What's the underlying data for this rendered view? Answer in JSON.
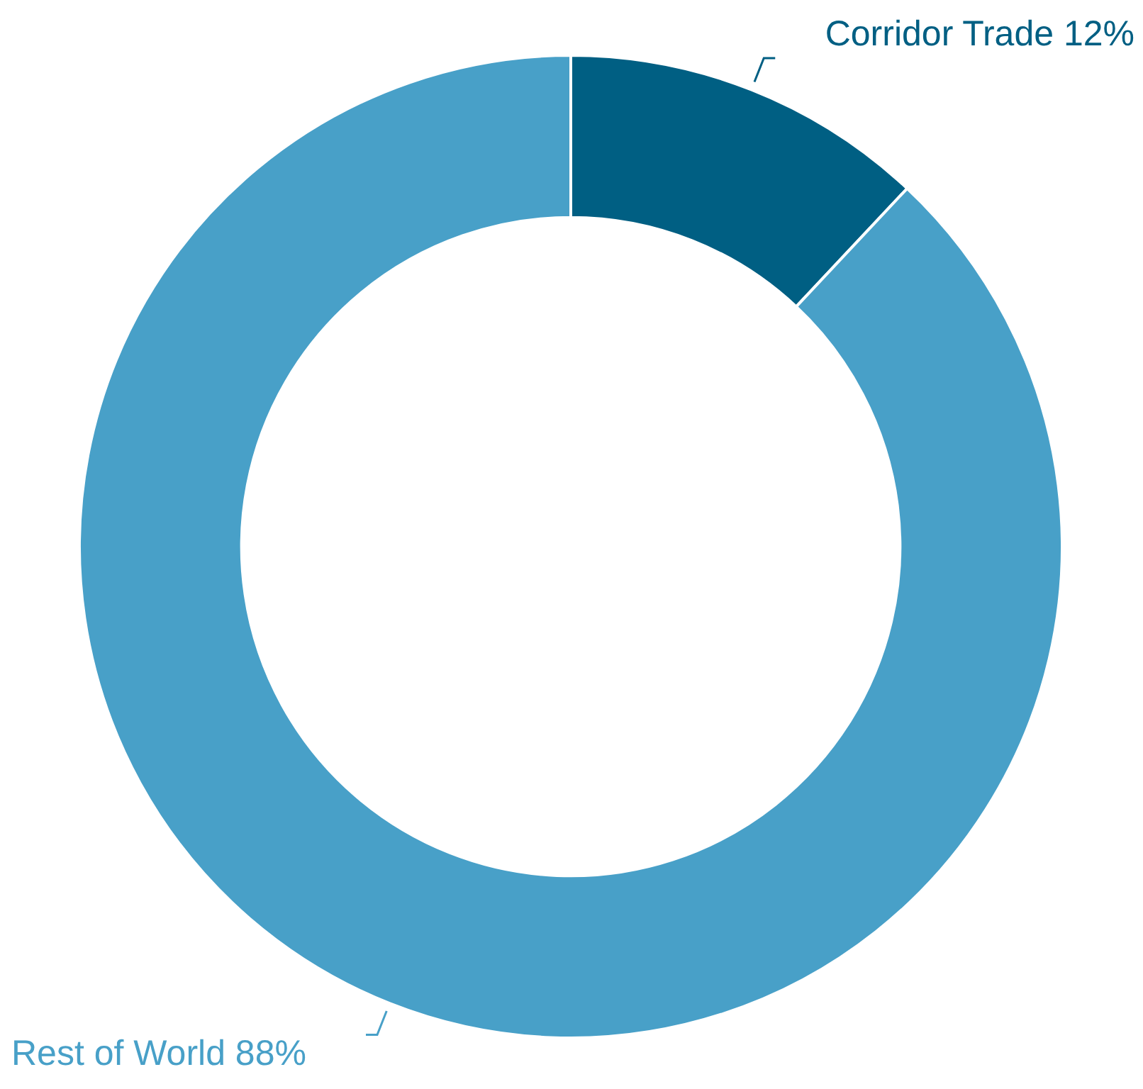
{
  "chart_data": {
    "type": "donut",
    "categories": [
      "Corridor Trade",
      "Rest of World"
    ],
    "values": [
      12,
      88
    ],
    "colors": [
      "#005f83",
      "#48a0c8"
    ],
    "value_labels": [
      "12%",
      "88%"
    ],
    "legend": false
  }
}
